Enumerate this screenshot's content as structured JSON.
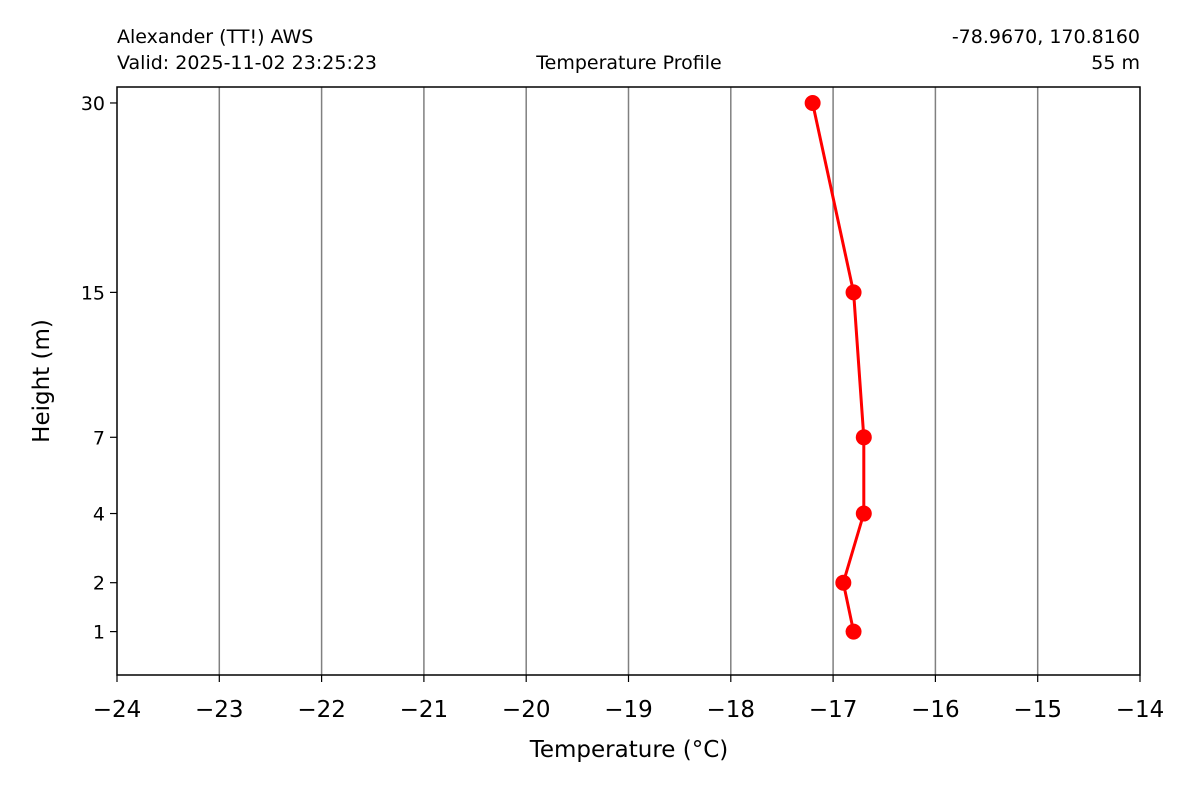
{
  "header": {
    "station": "Alexander (TT!) AWS",
    "valid": "Valid: 2025-11-02 23:25:23",
    "title": "Temperature Profile",
    "coords": "-78.9670, 170.8160",
    "elevation": "55 m"
  },
  "chart_data": {
    "type": "line",
    "title": "Temperature Profile",
    "xlabel": "Temperature (°C)",
    "ylabel": "Height (m)",
    "xlim": [
      -24,
      -14
    ],
    "ylim": [
      0.4,
      31.5
    ],
    "x_ticks": [
      -24,
      -23,
      -22,
      -21,
      -20,
      -19,
      -18,
      -17,
      -16,
      -15,
      -14
    ],
    "y_ticks": [
      1,
      2,
      4,
      7,
      15,
      30
    ],
    "y_scale": "sqrt",
    "grid": "vertical",
    "series": [
      {
        "color": "#ff0000",
        "marker": "circle",
        "points": [
          {
            "x": -16.8,
            "y": 1
          },
          {
            "x": -16.9,
            "y": 2
          },
          {
            "x": -16.7,
            "y": 4
          },
          {
            "x": -16.7,
            "y": 7
          },
          {
            "x": -16.8,
            "y": 15
          },
          {
            "x": -17.2,
            "y": 30
          }
        ]
      }
    ]
  }
}
